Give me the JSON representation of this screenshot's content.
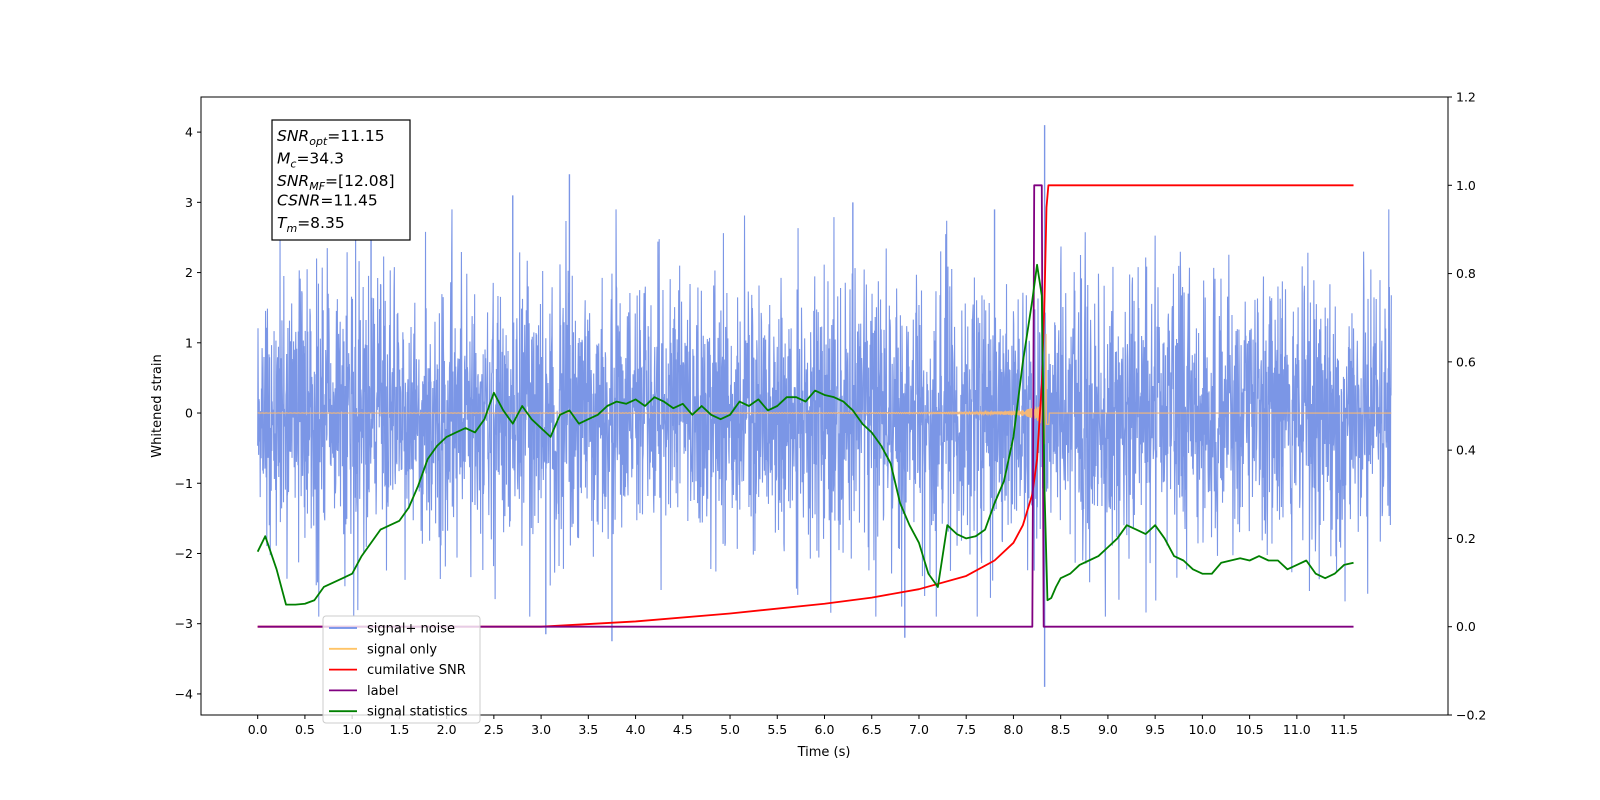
{
  "chart_data": {
    "type": "line",
    "xlabel": "Time (s)",
    "ylabel": "Whitened strain",
    "xlim": [
      -0.6,
      12.6
    ],
    "ylim": [
      -4.3,
      4.5
    ],
    "y2lim": [
      -0.2,
      1.2
    ],
    "x_ticks": [
      "0.0",
      "0.5",
      "1.0",
      "1.5",
      "2.0",
      "2.5",
      "3.0",
      "3.5",
      "4.0",
      "4.5",
      "5.0",
      "5.5",
      "6.0",
      "6.5",
      "7.0",
      "7.5",
      "8.0",
      "8.5",
      "9.0",
      "9.5",
      "10.0",
      "10.5",
      "11.0",
      "11.5"
    ],
    "y_ticks": [
      "4",
      "3",
      "2",
      "1",
      "0",
      "−1",
      "−2",
      "−3",
      "−4"
    ],
    "y2_ticks": [
      "1.2",
      "1.0",
      "0.8",
      "0.6",
      "0.4",
      "0.2",
      "0.0",
      "−0.2"
    ],
    "annotation": [
      {
        "main": "SNR",
        "sub": "opt",
        "value": "=11.15"
      },
      {
        "main": "M",
        "sub": "c",
        "value": "=34.3"
      },
      {
        "main": "SNR",
        "sub": "MF",
        "value": "=[12.08]"
      },
      {
        "main": "CSNR",
        "sub": "",
        "value": "=11.45"
      },
      {
        "main": "T",
        "sub": "m",
        "value": "=8.35"
      }
    ],
    "legend_position": "lower-left",
    "legend": [
      {
        "label": "signal+ noise",
        "color": "#6f8ee8"
      },
      {
        "label": "signal only",
        "color": "#ffc466"
      },
      {
        "label": "cumilative SNR",
        "color": "#ff0000"
      },
      {
        "label": "label",
        "color": "#800080"
      },
      {
        "label": "signal statistics",
        "color": "#008000"
      }
    ],
    "series": [
      {
        "name": "signal+ noise",
        "axis": "left",
        "color": "#7b96e6",
        "x_range": [
          0.0,
          12.0
        ],
        "noise_sigma": 0.95,
        "extremes": [
          [
            8.33,
            4.1
          ],
          [
            8.33,
            -3.9
          ],
          [
            1.2,
            3.1
          ],
          [
            3.3,
            3.4
          ],
          [
            2.7,
            3.1
          ],
          [
            6.3,
            3.0
          ],
          [
            7.8,
            2.9
          ],
          [
            3.75,
            -3.25
          ],
          [
            3.05,
            -3.15
          ],
          [
            6.85,
            -3.2
          ]
        ]
      },
      {
        "name": "signal only",
        "axis": "left",
        "color": "#f5b877",
        "x_range": [
          0.0,
          12.0
        ],
        "merger_time": 8.35
      },
      {
        "name": "cumilative SNR",
        "axis": "right",
        "color": "#ff0000",
        "x": [
          0.0,
          3.0,
          4.0,
          5.0,
          6.0,
          6.5,
          7.0,
          7.5,
          7.8,
          8.0,
          8.1,
          8.2,
          8.25,
          8.3,
          8.33,
          8.35,
          8.37,
          11.6
        ],
        "y": [
          0.0,
          0.0,
          0.012,
          0.03,
          0.052,
          0.066,
          0.085,
          0.115,
          0.15,
          0.19,
          0.23,
          0.3,
          0.38,
          0.55,
          0.75,
          0.95,
          1.0,
          1.0
        ]
      },
      {
        "name": "label",
        "axis": "right",
        "color": "#800080",
        "x": [
          0.0,
          8.2,
          8.22,
          8.3,
          8.32,
          11.6
        ],
        "y": [
          0.0,
          0.0,
          1.0,
          1.0,
          0.0,
          0.0
        ]
      },
      {
        "name": "signal statistics",
        "axis": "right",
        "color": "#008000",
        "x": [
          0.0,
          0.08,
          0.2,
          0.3,
          0.4,
          0.5,
          0.6,
          0.7,
          0.8,
          0.9,
          1.0,
          1.1,
          1.2,
          1.3,
          1.4,
          1.5,
          1.6,
          1.7,
          1.8,
          1.9,
          2.0,
          2.1,
          2.2,
          2.3,
          2.4,
          2.5,
          2.55,
          2.6,
          2.7,
          2.8,
          2.9,
          3.0,
          3.1,
          3.2,
          3.3,
          3.4,
          3.5,
          3.6,
          3.7,
          3.8,
          3.9,
          4.0,
          4.1,
          4.2,
          4.3,
          4.4,
          4.5,
          4.6,
          4.7,
          4.8,
          4.9,
          5.0,
          5.1,
          5.2,
          5.3,
          5.4,
          5.5,
          5.6,
          5.7,
          5.8,
          5.9,
          6.0,
          6.1,
          6.2,
          6.3,
          6.4,
          6.5,
          6.6,
          6.7,
          6.8,
          6.9,
          7.0,
          7.1,
          7.2,
          7.3,
          7.4,
          7.5,
          7.6,
          7.7,
          7.8,
          7.9,
          8.0,
          8.1,
          8.2,
          8.25,
          8.3,
          8.33,
          8.36,
          8.4,
          8.45,
          8.5,
          8.6,
          8.7,
          8.8,
          8.9,
          9.0,
          9.1,
          9.2,
          9.3,
          9.4,
          9.5,
          9.6,
          9.7,
          9.8,
          9.9,
          10.0,
          10.1,
          10.2,
          10.3,
          10.4,
          10.5,
          10.6,
          10.7,
          10.8,
          10.9,
          11.0,
          11.1,
          11.2,
          11.3,
          11.4,
          11.5,
          11.6
        ],
        "y": [
          0.17,
          0.205,
          0.13,
          0.05,
          0.05,
          0.052,
          0.06,
          0.09,
          0.1,
          0.11,
          0.12,
          0.16,
          0.19,
          0.22,
          0.23,
          0.24,
          0.27,
          0.32,
          0.38,
          0.41,
          0.43,
          0.44,
          0.45,
          0.44,
          0.47,
          0.53,
          0.51,
          0.49,
          0.46,
          0.5,
          0.47,
          0.45,
          0.43,
          0.48,
          0.49,
          0.46,
          0.47,
          0.48,
          0.5,
          0.51,
          0.505,
          0.515,
          0.5,
          0.52,
          0.51,
          0.495,
          0.505,
          0.48,
          0.5,
          0.48,
          0.47,
          0.48,
          0.51,
          0.5,
          0.515,
          0.49,
          0.5,
          0.52,
          0.52,
          0.51,
          0.535,
          0.525,
          0.52,
          0.51,
          0.49,
          0.46,
          0.44,
          0.41,
          0.37,
          0.28,
          0.23,
          0.19,
          0.12,
          0.09,
          0.23,
          0.21,
          0.2,
          0.205,
          0.22,
          0.28,
          0.33,
          0.43,
          0.6,
          0.74,
          0.82,
          0.75,
          0.3,
          0.06,
          0.065,
          0.09,
          0.11,
          0.12,
          0.14,
          0.15,
          0.16,
          0.18,
          0.2,
          0.23,
          0.22,
          0.21,
          0.23,
          0.2,
          0.16,
          0.15,
          0.13,
          0.12,
          0.12,
          0.145,
          0.15,
          0.155,
          0.15,
          0.16,
          0.15,
          0.15,
          0.13,
          0.14,
          0.15,
          0.12,
          0.11,
          0.12,
          0.14,
          0.145
        ]
      }
    ]
  }
}
